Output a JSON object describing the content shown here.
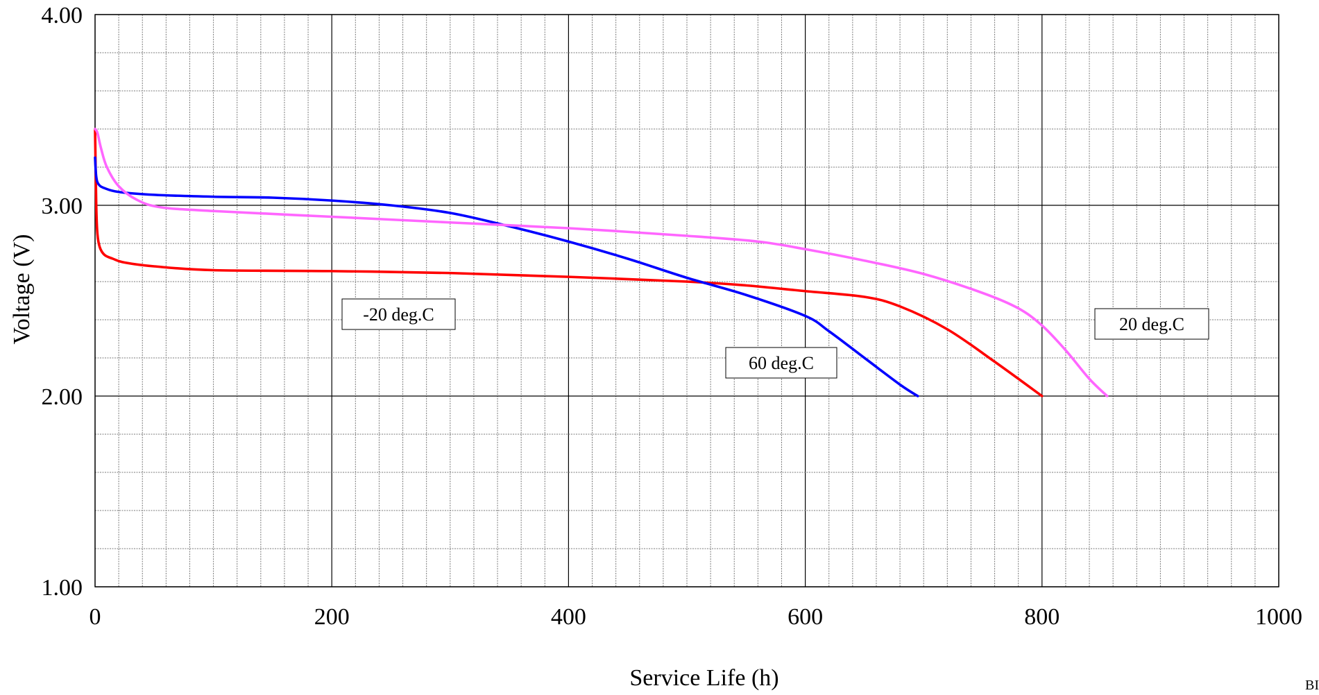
{
  "chart_data": {
    "type": "line",
    "title": "",
    "xlabel": "Service Life (h)",
    "ylabel": "Voltage (V)",
    "xlim": [
      0,
      1000
    ],
    "ylim": [
      1.0,
      4.0
    ],
    "x_ticks": [
      0,
      200,
      400,
      600,
      800,
      1000
    ],
    "x_tick_labels": [
      "0",
      "200",
      "400",
      "600",
      "800",
      "1000"
    ],
    "y_ticks": [
      1.0,
      2.0,
      3.0,
      4.0
    ],
    "y_tick_labels": [
      "1.00",
      "2.00",
      "3.00",
      "4.00"
    ],
    "x_minor_step": 20,
    "y_minor_step": 0.2,
    "grid": true,
    "legend": "none",
    "series": [
      {
        "name": "-20 deg.C",
        "color": "#ff0000",
        "x": [
          0,
          1,
          2,
          4,
          8,
          15,
          25,
          50,
          100,
          200,
          300,
          400,
          500,
          550,
          600,
          650,
          680,
          720,
          760,
          800
        ],
        "y": [
          3.4,
          3.0,
          2.85,
          2.78,
          2.74,
          2.72,
          2.7,
          2.68,
          2.66,
          2.655,
          2.645,
          2.625,
          2.6,
          2.58,
          2.55,
          2.52,
          2.47,
          2.35,
          2.18,
          2.0
        ]
      },
      {
        "name": "60 deg.C",
        "color": "#0000ff",
        "x": [
          0,
          1,
          3,
          8,
          20,
          50,
          100,
          150,
          200,
          250,
          300,
          350,
          400,
          450,
          500,
          550,
          600,
          620,
          650,
          680,
          695
        ],
        "y": [
          3.25,
          3.15,
          3.11,
          3.09,
          3.07,
          3.055,
          3.045,
          3.04,
          3.025,
          3.0,
          2.96,
          2.89,
          2.81,
          2.72,
          2.62,
          2.53,
          2.42,
          2.34,
          2.2,
          2.06,
          2.0
        ]
      },
      {
        "name": "20 deg.C",
        "color": "#ff66ff",
        "x": [
          0,
          2,
          5,
          10,
          20,
          35,
          55,
          100,
          200,
          300,
          400,
          500,
          560,
          600,
          650,
          700,
          750,
          780,
          800,
          820,
          840,
          855
        ],
        "y": [
          3.4,
          3.38,
          3.3,
          3.2,
          3.1,
          3.03,
          2.99,
          2.97,
          2.94,
          2.91,
          2.88,
          2.84,
          2.81,
          2.77,
          2.71,
          2.64,
          2.54,
          2.46,
          2.37,
          2.24,
          2.09,
          2.0
        ]
      }
    ],
    "annotations": [
      "-20 deg.C",
      "60 deg.C",
      "20 deg.C"
    ]
  },
  "corner_text": "BI"
}
